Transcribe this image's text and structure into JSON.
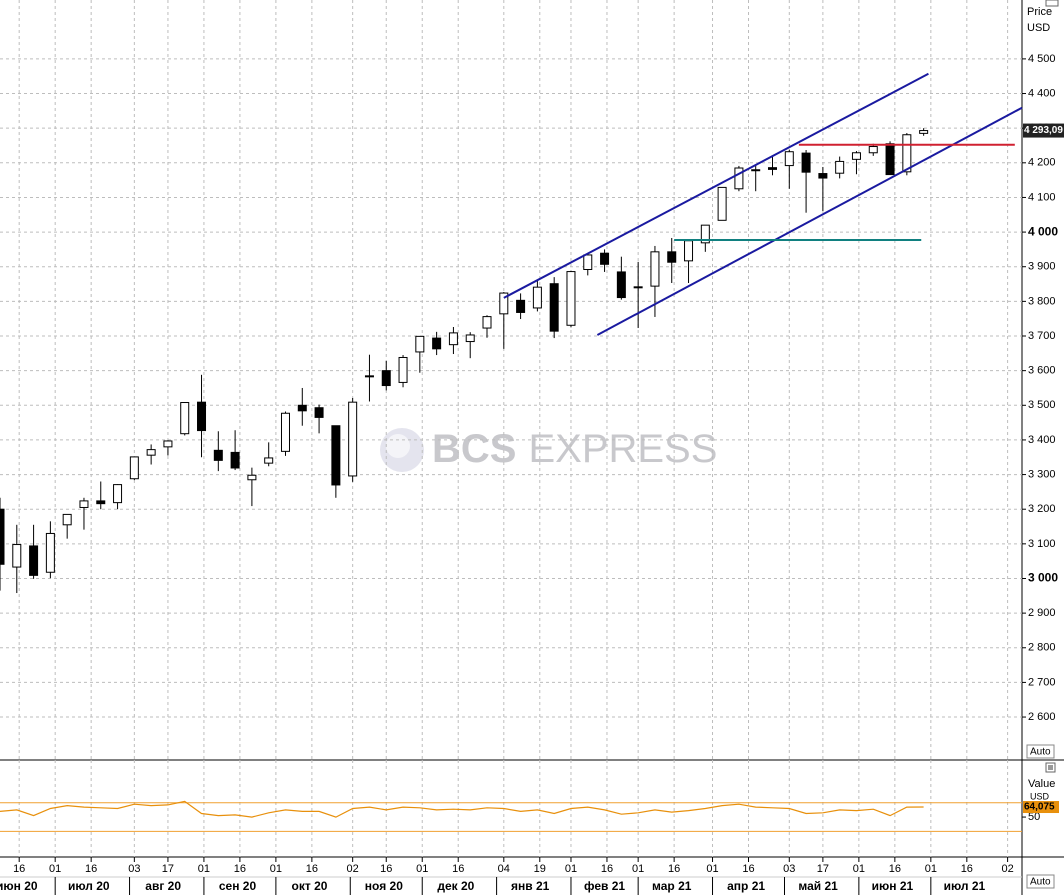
{
  "chart_data": [
    {
      "type": "candlestick",
      "axis_title": "Price",
      "axis_unit": "USD",
      "scale_mode": "Auto",
      "watermark": {
        "brand": "BCS",
        "name": "EXPRESS"
      },
      "x": [
        "2020-06-08",
        "2020-06-15",
        "2020-06-22",
        "2020-06-29",
        "2020-07-06",
        "2020-07-13",
        "2020-07-20",
        "2020-07-27",
        "2020-08-03",
        "2020-08-10",
        "2020-08-17",
        "2020-08-24",
        "2020-08-31",
        "2020-09-07",
        "2020-09-14",
        "2020-09-21",
        "2020-09-28",
        "2020-10-05",
        "2020-10-12",
        "2020-10-19",
        "2020-10-26",
        "2020-11-02",
        "2020-11-09",
        "2020-11-16",
        "2020-11-23",
        "2020-11-30",
        "2020-12-07",
        "2020-12-14",
        "2020-12-21",
        "2020-12-28",
        "2021-01-04",
        "2021-01-11",
        "2021-01-18",
        "2021-01-25",
        "2021-02-01",
        "2021-02-08",
        "2021-02-15",
        "2021-02-22",
        "2021-03-01",
        "2021-03-08",
        "2021-03-15",
        "2021-03-22",
        "2021-03-29",
        "2021-04-05",
        "2021-04-12",
        "2021-04-19",
        "2021-04-26",
        "2021-05-03",
        "2021-05-10",
        "2021-05-17",
        "2021-05-24",
        "2021-05-31",
        "2021-06-07",
        "2021-06-14",
        "2021-06-21",
        "2021-06-28"
      ],
      "open": [
        3200,
        3033,
        3094,
        3018,
        3155,
        3205,
        3224,
        3219,
        3288,
        3356,
        3380,
        3418,
        3509,
        3370,
        3364,
        3285,
        3333,
        3367,
        3500,
        3493,
        3441,
        3296,
        3583,
        3600,
        3566,
        3654,
        3694,
        3675,
        3684,
        3723,
        3764,
        3803,
        3781,
        3851,
        3731,
        3892,
        3939,
        3885,
        3842,
        3844,
        3943,
        3917,
        3969,
        4034,
        4125,
        4180,
        4186,
        4192,
        4228,
        4169,
        4170,
        4210,
        4229,
        4255,
        4174,
        4285
      ],
      "high": [
        3233,
        3155,
        3155,
        3165,
        3185,
        3233,
        3280,
        3272,
        3352,
        3387,
        3399,
        3509,
        3588,
        3425,
        3428,
        3320,
        3393,
        3482,
        3550,
        3502,
        3441,
        3521,
        3646,
        3628,
        3645,
        3699,
        3712,
        3726,
        3711,
        3760,
        3827,
        3823,
        3861,
        3870,
        3888,
        3935,
        3950,
        3929,
        3914,
        3960,
        3983,
        3975,
        4020,
        4129,
        4191,
        4194,
        4219,
        4238,
        4237,
        4188,
        4218,
        4234,
        4255,
        4262,
        4286,
        4300
      ],
      "low": [
        2965,
        2958,
        2999,
        3001,
        3115,
        3141,
        3200,
        3200,
        3284,
        3329,
        3355,
        3413,
        3350,
        3310,
        3313,
        3209,
        3324,
        3354,
        3441,
        3419,
        3233,
        3279,
        3511,
        3543,
        3552,
        3594,
        3645,
        3648,
        3636,
        3695,
        3663,
        3749,
        3771,
        3694,
        3725,
        3875,
        3885,
        3805,
        3723,
        3755,
        3853,
        3853,
        3943,
        4034,
        4118,
        4118,
        4164,
        4125,
        4056,
        4061,
        4155,
        4167,
        4220,
        4165,
        4164,
        4278
      ],
      "close": [
        3041,
        3098,
        3009,
        3130,
        3185,
        3224,
        3216,
        3271,
        3351,
        3372,
        3397,
        3508,
        3427,
        3341,
        3319,
        3298,
        3348,
        3477,
        3484,
        3465,
        3270,
        3509,
        3585,
        3557,
        3638,
        3699,
        3663,
        3709,
        3703,
        3756,
        3824,
        3768,
        3841,
        3714,
        3886,
        3934,
        3907,
        3811,
        3842,
        3943,
        3913,
        3975,
        4020,
        4129,
        4185,
        4180,
        4181,
        4232,
        4173,
        4156,
        4204,
        4229,
        4247,
        4166,
        4281,
        4293.09
      ],
      "last_price": {
        "value": 4293.09,
        "label": "4 293,09"
      },
      "xlim": [
        "2020-06-08",
        "2021-08-08"
      ],
      "ylim": [
        2476,
        4670
      ],
      "yticks": [
        {
          "value": 2600,
          "label": "2 600"
        },
        {
          "value": 2700,
          "label": "2 700"
        },
        {
          "value": 2800,
          "label": "2 800"
        },
        {
          "value": 2900,
          "label": "2 900"
        },
        {
          "value": 3000,
          "label": "3 000"
        },
        {
          "value": 3100,
          "label": "3 100"
        },
        {
          "value": 3200,
          "label": "3 200"
        },
        {
          "value": 3300,
          "label": "3 300"
        },
        {
          "value": 3400,
          "label": "3 400"
        },
        {
          "value": 3500,
          "label": "3 500"
        },
        {
          "value": 3600,
          "label": "3 600"
        },
        {
          "value": 3700,
          "label": "3 700"
        },
        {
          "value": 3800,
          "label": "3 800"
        },
        {
          "value": 3900,
          "label": "3 900"
        },
        {
          "value": 4000,
          "label": "4 000"
        },
        {
          "value": 4100,
          "label": "4 100"
        },
        {
          "value": 4200,
          "label": "4 200"
        },
        {
          "value": 4300,
          "label": "4 300"
        },
        {
          "value": 4400,
          "label": "4 400"
        },
        {
          "value": 4500,
          "label": "4 500"
        }
      ],
      "xticks": [
        {
          "value": "2020-06-16",
          "label": "16"
        },
        {
          "value": "2020-07-01",
          "label": "01"
        },
        {
          "value": "2020-07-16",
          "label": "16"
        },
        {
          "value": "2020-08-03",
          "label": "03"
        },
        {
          "value": "2020-08-17",
          "label": "17"
        },
        {
          "value": "2020-09-01",
          "label": "01"
        },
        {
          "value": "2020-09-16",
          "label": "16"
        },
        {
          "value": "2020-10-01",
          "label": "01"
        },
        {
          "value": "2020-10-16",
          "label": "16"
        },
        {
          "value": "2020-11-02",
          "label": "02"
        },
        {
          "value": "2020-11-16",
          "label": "16"
        },
        {
          "value": "2020-12-01",
          "label": "01"
        },
        {
          "value": "2020-12-16",
          "label": "16"
        },
        {
          "value": "2021-01-04",
          "label": "04"
        },
        {
          "value": "2021-01-19",
          "label": "19"
        },
        {
          "value": "2021-02-01",
          "label": "01"
        },
        {
          "value": "2021-02-16",
          "label": "16"
        },
        {
          "value": "2021-03-01",
          "label": "01"
        },
        {
          "value": "2021-03-16",
          "label": "16"
        },
        {
          "value": "2021-04-01",
          "label": "01"
        },
        {
          "value": "2021-04-16",
          "label": "16"
        },
        {
          "value": "2021-05-03",
          "label": "03"
        },
        {
          "value": "2021-05-17",
          "label": "17"
        },
        {
          "value": "2021-06-01",
          "label": "01"
        },
        {
          "value": "2021-06-16",
          "label": "16"
        },
        {
          "value": "2021-07-01",
          "label": "01"
        },
        {
          "value": "2021-07-16",
          "label": "16"
        },
        {
          "value": "2021-08-02",
          "label": "02"
        }
      ],
      "months": [
        {
          "value": "2020-06",
          "label": "июн 20"
        },
        {
          "value": "2020-07",
          "label": "июл 20"
        },
        {
          "value": "2020-08",
          "label": "авг 20"
        },
        {
          "value": "2020-09",
          "label": "сен 20"
        },
        {
          "value": "2020-10",
          "label": "окт 20"
        },
        {
          "value": "2020-11",
          "label": "ноя 20"
        },
        {
          "value": "2020-12",
          "label": "дек 20"
        },
        {
          "value": "2021-01",
          "label": "янв 21"
        },
        {
          "value": "2021-02",
          "label": "фев 21"
        },
        {
          "value": "2021-03",
          "label": "мар 21"
        },
        {
          "value": "2021-04",
          "label": "апр 21"
        },
        {
          "value": "2021-05",
          "label": "май 21"
        },
        {
          "value": "2021-06",
          "label": "июн 21"
        },
        {
          "value": "2021-07",
          "label": "июл 21"
        }
      ],
      "grid": true,
      "drawings": [
        {
          "x": [
            "2021-01-04",
            "2021-06-30"
          ],
          "y": [
            3810,
            4457
          ],
          "color": "#1a1aa0"
        },
        {
          "x": [
            "2021-02-12",
            "2021-08-08"
          ],
          "y": [
            3703,
            4359
          ],
          "color": "#1a1aa0"
        },
        {
          "x": [
            "2021-05-07",
            "2021-08-05"
          ],
          "y": [
            4252,
            4252
          ],
          "color": "#d02030"
        },
        {
          "x": [
            "2021-03-16",
            "2021-06-27"
          ],
          "y": [
            3977,
            3977
          ],
          "color": "#108080"
        }
      ]
    },
    {
      "type": "line",
      "axis_title": "Value",
      "axis_unit": "USD",
      "scale_mode": "Auto",
      "x": [
        "2020-06-08",
        "2020-06-15",
        "2020-06-22",
        "2020-06-29",
        "2020-07-06",
        "2020-07-13",
        "2020-07-20",
        "2020-07-27",
        "2020-08-03",
        "2020-08-10",
        "2020-08-17",
        "2020-08-24",
        "2020-08-31",
        "2020-09-07",
        "2020-09-14",
        "2020-09-21",
        "2020-09-28",
        "2020-10-05",
        "2020-10-12",
        "2020-10-19",
        "2020-10-26",
        "2020-11-02",
        "2020-11-09",
        "2020-11-16",
        "2020-11-23",
        "2020-11-30",
        "2020-12-07",
        "2020-12-14",
        "2020-12-21",
        "2020-12-28",
        "2021-01-04",
        "2021-01-11",
        "2021-01-18",
        "2021-01-25",
        "2021-02-01",
        "2021-02-08",
        "2021-02-15",
        "2021-02-22",
        "2021-03-01",
        "2021-03-08",
        "2021-03-15",
        "2021-03-22",
        "2021-03-29",
        "2021-04-05",
        "2021-04-12",
        "2021-04-19",
        "2021-04-26",
        "2021-05-03",
        "2021-05-10",
        "2021-05-17",
        "2021-05-24",
        "2021-05-31",
        "2021-06-07",
        "2021-06-14",
        "2021-06-21",
        "2021-06-28"
      ],
      "values": [
        58,
        60,
        52,
        62,
        66,
        64,
        63,
        62,
        68,
        66,
        67,
        72,
        55,
        52,
        53,
        50,
        56,
        60,
        58,
        58,
        50,
        62,
        64,
        60,
        64,
        63,
        60,
        61,
        60,
        63,
        62,
        58,
        60,
        55,
        62,
        64,
        60,
        54,
        56,
        60,
        57,
        59,
        62,
        66,
        68,
        64,
        63,
        62,
        55,
        56,
        60,
        59,
        61,
        52,
        64,
        64.075
      ],
      "last_value": {
        "value": 64.075,
        "label": "64,075"
      },
      "color": "#e8900c",
      "levels": [
        70,
        30
      ],
      "level_color": "#f0a030",
      "ylim": [
        -6,
        130
      ],
      "yticks": [
        50
      ]
    }
  ]
}
